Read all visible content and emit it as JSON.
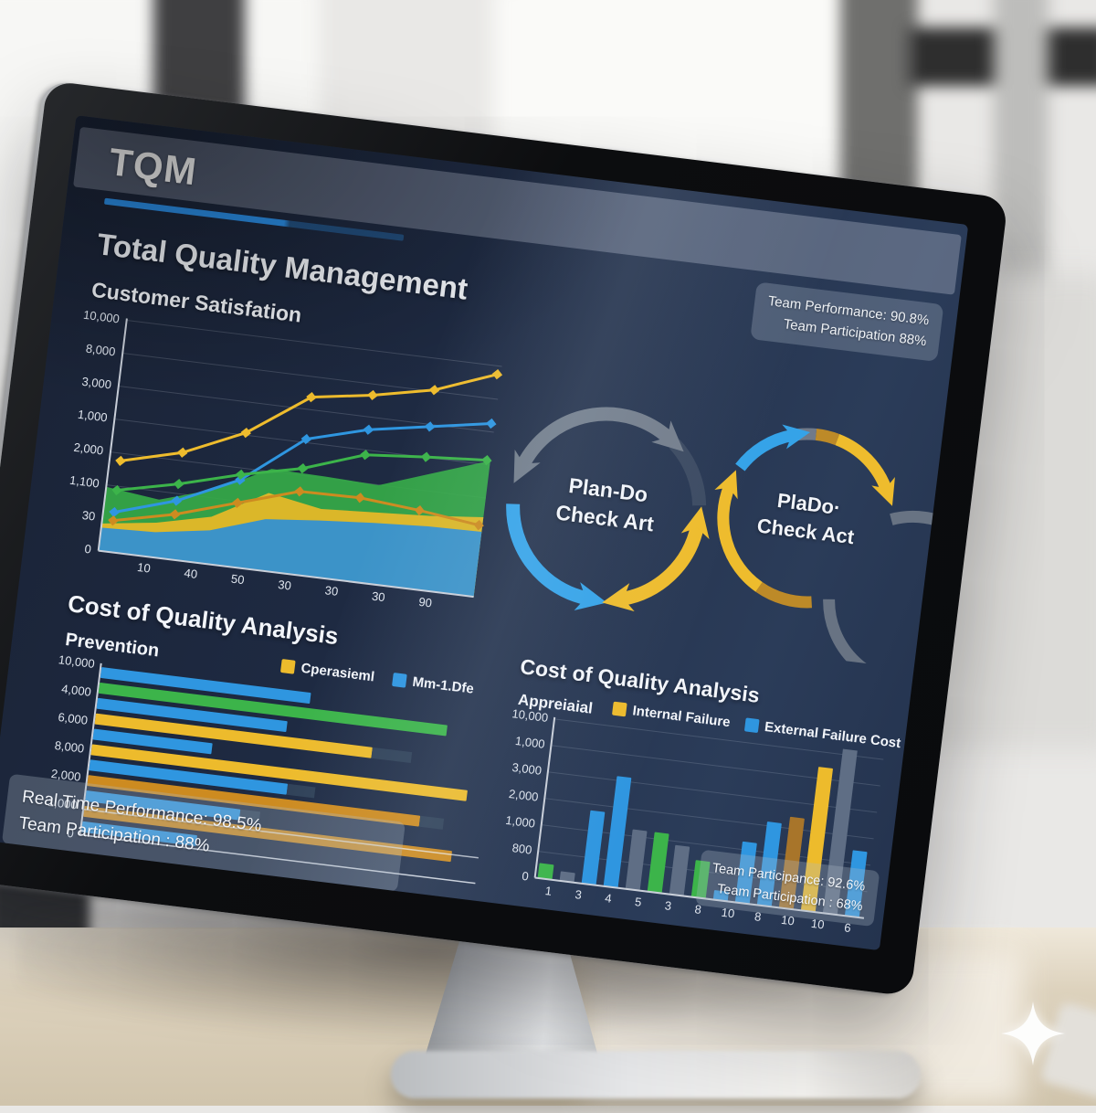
{
  "header": {
    "app_title": "TQM"
  },
  "top_stats": {
    "line1": "Team Performance: 90.8%",
    "line2": "Team Participation 88%"
  },
  "main": {
    "title": "Total Quality Management",
    "chart1_title": "Customer Satisfation"
  },
  "pdca": {
    "left_line1": "Plan-Do",
    "left_line2": "Check Art",
    "right_line1": "PlaDo·",
    "right_line2": "Check Act"
  },
  "bottom_left": {
    "title": "Cost of Quality Analysis",
    "subtitle": "Prevention",
    "legend": [
      {
        "label": "Cperasieml",
        "color": "#edbb2c"
      },
      {
        "label": "Mm-1.Dfe",
        "color": "#2f96e0"
      }
    ]
  },
  "bottom_right": {
    "title": "Cost of Quality Analysis",
    "subtitle": "Appreiaial",
    "legend": [
      {
        "label": "Internal Failure",
        "color": "#edbb2c"
      },
      {
        "label": "External Failure Cost",
        "color": "#2f96e0"
      }
    ],
    "stats": {
      "line1": "Team Participance: 92.6%",
      "line2": "Team Participation : 68%"
    }
  },
  "bottom_status": {
    "line1": "Real Time Performance: 98.5%",
    "line2": "Team Participation : 88%"
  },
  "colors": {
    "accent_blue": "#2b8fe8",
    "blue": "#2f96e0",
    "yellow": "#edbb2c",
    "green": "#3cb44a",
    "orange": "#cd8b20",
    "brown": "#a8752a",
    "gray_bar": "#5f6e85",
    "bar_shadow": "#2f4158",
    "arrow_gray": "#78828f",
    "arrow_blue": "#35a3e8",
    "arrow_yellow": "#eebc2d",
    "arrow_orange": "#bd8a28"
  },
  "chart_data": [
    {
      "id": "customer_satisfaction",
      "type": "area",
      "title": "Customer Satisfation",
      "y_tick_labels": [
        "10,000",
        "8,000",
        "3,000",
        "1,000",
        "2,000",
        "1,100",
        "30",
        "0"
      ],
      "x_tick_labels": [
        "10",
        "40",
        "50",
        "30",
        "30",
        "30",
        "90"
      ],
      "ylim": [
        0,
        11000
      ],
      "grid": true,
      "areas": [
        {
          "name": "green-area",
          "color": "#35aa48",
          "values": [
            3050,
            2750,
            3550,
            4850,
            4800,
            4700,
            5600,
            6500
          ]
        },
        {
          "name": "yellow-area",
          "color": "#e9b827",
          "values": [
            1300,
            1650,
            2250,
            3700,
            3250,
            3400,
            3550,
            3800
          ]
        },
        {
          "name": "blue-area",
          "color": "#2f8fd6",
          "values": [
            1100,
            1200,
            1600,
            2450,
            2700,
            2900,
            3050,
            3100
          ]
        }
      ],
      "series": [
        {
          "name": "yellow-line",
          "color": "#eebc2d",
          "values": [
            4350,
            5100,
            6400,
            8450,
            8900,
            9500,
            10600
          ]
        },
        {
          "name": "blue-line",
          "color": "#2f96e0",
          "values": [
            1900,
            2800,
            4150,
            6450,
            7250,
            7750,
            8250
          ]
        },
        {
          "name": "green-line",
          "color": "#3cb44a",
          "values": [
            2950,
            3600,
            4400,
            5050,
            6050,
            6300,
            6500
          ]
        },
        {
          "name": "orange-line",
          "color": "#cd8b20",
          "values": [
            1500,
            2150,
            3050,
            3950,
            4000,
            3750,
            3400
          ]
        }
      ]
    },
    {
      "id": "coq_prevention",
      "type": "bar-horizontal",
      "title": "Cost of Quality Analysis",
      "subtitle": "Prevention",
      "y_tick_labels": [
        "10,000",
        "4,000",
        "6,000",
        "8,000",
        "2,000",
        "1,000",
        "0"
      ],
      "xlim": [
        0,
        10000
      ],
      "bars": [
        {
          "color": "#2f96e0",
          "value": 5300
        },
        {
          "color": "#3cb44a",
          "value": 8800
        },
        {
          "color": "#2f96e0",
          "value": 4800
        },
        {
          "color": "#edbb2c",
          "value": 7000,
          "ext": 8000
        },
        {
          "color": "#2f96e0",
          "value": 3000
        },
        {
          "color": "#edbb2c",
          "value": 9500
        },
        {
          "color": "#2f96e0",
          "value": 5000,
          "ext": 5700
        },
        {
          "color": "#cd8b20",
          "value": 8400,
          "ext": 9000
        },
        {
          "color": "#2f96e0",
          "value": 3900,
          "ext": 4400
        },
        {
          "color": "#cd8b20",
          "value": 9300
        },
        {
          "color": "#2f96e0",
          "value": 2900
        }
      ]
    },
    {
      "id": "coq_appraisal",
      "type": "bar",
      "title": "Cost of Quality Analysis",
      "subtitle": "Appreiaial",
      "y_tick_labels": [
        "10,000",
        "1,000",
        "3,000",
        "2,000",
        "1,000",
        "800",
        "0"
      ],
      "x_tick_labels": [
        "1",
        "3",
        "4",
        "5",
        "3",
        "8",
        "10",
        "8",
        "10",
        "10",
        "6"
      ],
      "ylim": [
        0,
        11600
      ],
      "bars": [
        {
          "color": "#3cb44a",
          "value": 1100
        },
        {
          "color": "#5f6e85",
          "value": 700
        },
        {
          "color": "#2f96e0",
          "value": 5350
        },
        {
          "color": "#2f96e0",
          "value": 8050
        },
        {
          "color": "#5f6e85",
          "value": 4350
        },
        {
          "color": "#3cb44a",
          "value": 4350
        },
        {
          "color": "#5f6e85",
          "value": 3600
        },
        {
          "color": "#3cb44a",
          "value": 2700
        },
        {
          "color": "#2f96e0",
          "value": 700
        },
        {
          "color": "#2f96e0",
          "value": 4450
        },
        {
          "color": "#2f96e0",
          "value": 6100
        },
        {
          "color": "#a8752a",
          "value": 6650
        },
        {
          "color": "#edbb2c",
          "value": 10500
        },
        {
          "color": "#5f6e85",
          "value": 12400
        },
        {
          "color": "#2f96e0",
          "value": 4800
        }
      ]
    }
  ]
}
